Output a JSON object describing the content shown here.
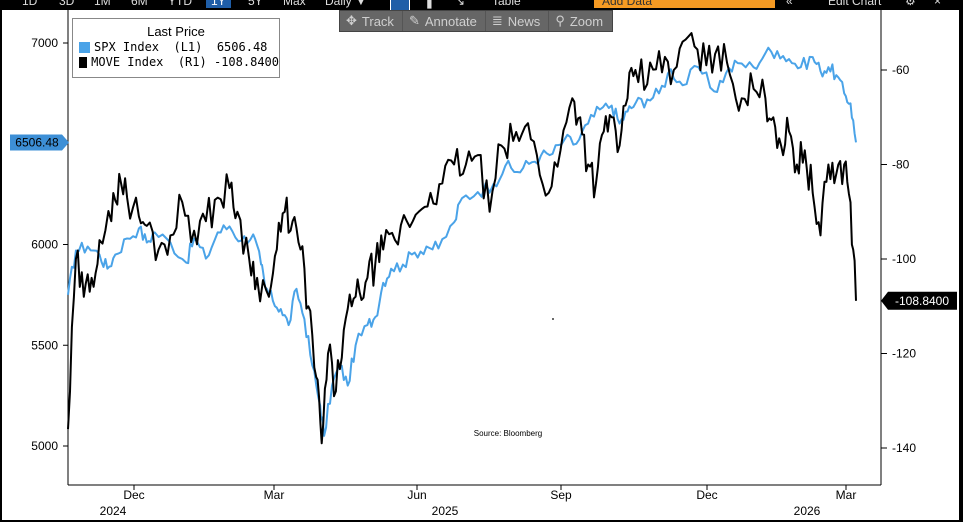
{
  "toolbar": {
    "ranges": [
      "1D",
      "3D",
      "1M",
      "6M",
      "YTD",
      "1Y",
      "5Y",
      "Max"
    ],
    "active_range": "1Y",
    "frequency": "Daily",
    "frequency_arrow": "▼",
    "table_label": "Table",
    "add_data_placeholder": "Add Data",
    "edit_chart_label": "Edit Chart",
    "nav_icon": "«",
    "settings_icon": "gear",
    "close_icon": "×"
  },
  "tools": [
    {
      "icon": "✥",
      "label": "Track"
    },
    {
      "icon": "✎",
      "label": "Annotate"
    },
    {
      "icon": "≣",
      "label": "News"
    },
    {
      "icon": "⚲",
      "label": "Zoom"
    }
  ],
  "legend": {
    "header": "Last Price",
    "items": [
      {
        "name": "SPX Index  (L1)",
        "value": "6506.48",
        "color": "#4aa3e8"
      },
      {
        "name": "MOVE Index  (R1)",
        "value": "-108.8400",
        "color": "#000000"
      }
    ]
  },
  "source": "Source: Bloomberg",
  "tags": {
    "left": "6506.48",
    "right": "-108.8400"
  },
  "colors": {
    "spx": "#4aa3e8",
    "move": "#000000",
    "tag_left_bg": "#3d8fd6",
    "tag_right_bg": "#000000"
  },
  "chart_data": {
    "type": "line",
    "x_months": [
      "Dec",
      "Mar",
      "Jun",
      "Sep",
      "Dec",
      "Mar"
    ],
    "x_years": [
      "2024",
      "2025",
      "2026"
    ],
    "y_left": {
      "ticks": [
        5000,
        5500,
        6000,
        6500,
        7000
      ],
      "ylim": [
        4880,
        7100
      ]
    },
    "y_right": {
      "ticks": [
        -60,
        -80,
        -100,
        -120,
        -140
      ],
      "ylim": [
        -147,
        -51
      ]
    },
    "series": [
      {
        "name": "SPX Index (L1)",
        "axis": "left",
        "color": "#4aa3e8",
        "last": 6506.48,
        "points": [
          [
            0,
            5750
          ],
          [
            0.01,
            5970
          ],
          [
            0.025,
            5990
          ],
          [
            0.04,
            5950
          ],
          [
            0.05,
            5880
          ],
          [
            0.06,
            5950
          ],
          [
            0.075,
            6030
          ],
          [
            0.09,
            6080
          ],
          [
            0.1,
            6010
          ],
          [
            0.11,
            6060
          ],
          [
            0.13,
            6010
          ],
          [
            0.15,
            5910
          ],
          [
            0.16,
            6030
          ],
          [
            0.175,
            5930
          ],
          [
            0.19,
            6060
          ],
          [
            0.205,
            6090
          ],
          [
            0.22,
            6020
          ],
          [
            0.235,
            6050
          ],
          [
            0.245,
            5900
          ],
          [
            0.25,
            5790
          ],
          [
            0.26,
            5720
          ],
          [
            0.27,
            5680
          ],
          [
            0.28,
            5600
          ],
          [
            0.29,
            5780
          ],
          [
            0.3,
            5630
          ],
          [
            0.31,
            5400
          ],
          [
            0.32,
            5200
          ],
          [
            0.325,
            5050
          ],
          [
            0.335,
            5300
          ],
          [
            0.345,
            5400
          ],
          [
            0.355,
            5300
          ],
          [
            0.365,
            5500
          ],
          [
            0.38,
            5600
          ],
          [
            0.39,
            5640
          ],
          [
            0.4,
            5810
          ],
          [
            0.41,
            5880
          ],
          [
            0.425,
            5900
          ],
          [
            0.44,
            5960
          ],
          [
            0.455,
            5990
          ],
          [
            0.47,
            5980
          ],
          [
            0.49,
            6110
          ],
          [
            0.5,
            6230
          ],
          [
            0.52,
            6260
          ],
          [
            0.54,
            6300
          ],
          [
            0.555,
            6390
          ],
          [
            0.57,
            6360
          ],
          [
            0.585,
            6400
          ],
          [
            0.6,
            6440
          ],
          [
            0.615,
            6450
          ],
          [
            0.63,
            6520
          ],
          [
            0.645,
            6500
          ],
          [
            0.66,
            6600
          ],
          [
            0.675,
            6670
          ],
          [
            0.69,
            6690
          ],
          [
            0.7,
            6600
          ],
          [
            0.71,
            6660
          ],
          [
            0.72,
            6700
          ],
          [
            0.735,
            6720
          ],
          [
            0.75,
            6750
          ],
          [
            0.765,
            6870
          ],
          [
            0.78,
            6790
          ],
          [
            0.8,
            6880
          ],
          [
            0.82,
            6760
          ],
          [
            0.835,
            6850
          ],
          [
            0.85,
            6900
          ],
          [
            0.87,
            6880
          ],
          [
            0.885,
            6950
          ],
          [
            0.9,
            6960
          ],
          [
            0.915,
            6920
          ],
          [
            0.93,
            6880
          ],
          [
            0.945,
            6930
          ],
          [
            0.955,
            6860
          ],
          [
            0.965,
            6880
          ],
          [
            0.975,
            6840
          ],
          [
            0.985,
            6750
          ],
          [
            0.993,
            6700
          ],
          [
            1.0,
            6506.48
          ]
        ]
      },
      {
        "name": "MOVE Index (R1)",
        "axis": "right",
        "color": "#000000",
        "last": -108.84,
        "points": [
          [
            0,
            -136
          ],
          [
            0.01,
            -100
          ],
          [
            0.02,
            -108
          ],
          [
            0.03,
            -104
          ],
          [
            0.04,
            -96
          ],
          [
            0.055,
            -92
          ],
          [
            0.065,
            -82
          ],
          [
            0.075,
            -87
          ],
          [
            0.09,
            -91
          ],
          [
            0.1,
            -93
          ],
          [
            0.115,
            -98
          ],
          [
            0.13,
            -95
          ],
          [
            0.145,
            -88
          ],
          [
            0.16,
            -94
          ],
          [
            0.175,
            -92
          ],
          [
            0.19,
            -87
          ],
          [
            0.205,
            -85
          ],
          [
            0.215,
            -90
          ],
          [
            0.23,
            -100
          ],
          [
            0.24,
            -104
          ],
          [
            0.255,
            -108
          ],
          [
            0.265,
            -98
          ],
          [
            0.275,
            -90
          ],
          [
            0.285,
            -92
          ],
          [
            0.295,
            -98
          ],
          [
            0.305,
            -110
          ],
          [
            0.315,
            -125
          ],
          [
            0.322,
            -139
          ],
          [
            0.33,
            -120
          ],
          [
            0.34,
            -128
          ],
          [
            0.35,
            -115
          ],
          [
            0.36,
            -110
          ],
          [
            0.37,
            -107
          ],
          [
            0.38,
            -104
          ],
          [
            0.39,
            -101
          ],
          [
            0.4,
            -98
          ],
          [
            0.415,
            -96
          ],
          [
            0.43,
            -92
          ],
          [
            0.445,
            -90
          ],
          [
            0.46,
            -86
          ],
          [
            0.475,
            -84
          ],
          [
            0.49,
            -80
          ],
          [
            0.505,
            -80
          ],
          [
            0.52,
            -78
          ],
          [
            0.535,
            -90
          ],
          [
            0.55,
            -76
          ],
          [
            0.565,
            -75
          ],
          [
            0.58,
            -72
          ],
          [
            0.595,
            -78
          ],
          [
            0.61,
            -86
          ],
          [
            0.625,
            -77
          ],
          [
            0.64,
            -66
          ],
          [
            0.65,
            -70
          ],
          [
            0.66,
            -80
          ],
          [
            0.67,
            -84
          ],
          [
            0.68,
            -73
          ],
          [
            0.69,
            -70
          ],
          [
            0.7,
            -76
          ],
          [
            0.71,
            -66
          ],
          [
            0.72,
            -60
          ],
          [
            0.735,
            -63
          ],
          [
            0.75,
            -56
          ],
          [
            0.765,
            -63
          ],
          [
            0.78,
            -54
          ],
          [
            0.795,
            -55
          ],
          [
            0.81,
            -59
          ],
          [
            0.825,
            -55
          ],
          [
            0.84,
            -61
          ],
          [
            0.855,
            -66
          ],
          [
            0.87,
            -64
          ],
          [
            0.885,
            -66
          ],
          [
            0.895,
            -70
          ],
          [
            0.905,
            -76
          ],
          [
            0.915,
            -73
          ],
          [
            0.925,
            -80
          ],
          [
            0.935,
            -77
          ],
          [
            0.945,
            -86
          ],
          [
            0.955,
            -95
          ],
          [
            0.965,
            -80
          ],
          [
            0.975,
            -82
          ],
          [
            0.985,
            -80
          ],
          [
            0.993,
            -88
          ],
          [
            1.0,
            -108.84
          ]
        ]
      }
    ]
  }
}
